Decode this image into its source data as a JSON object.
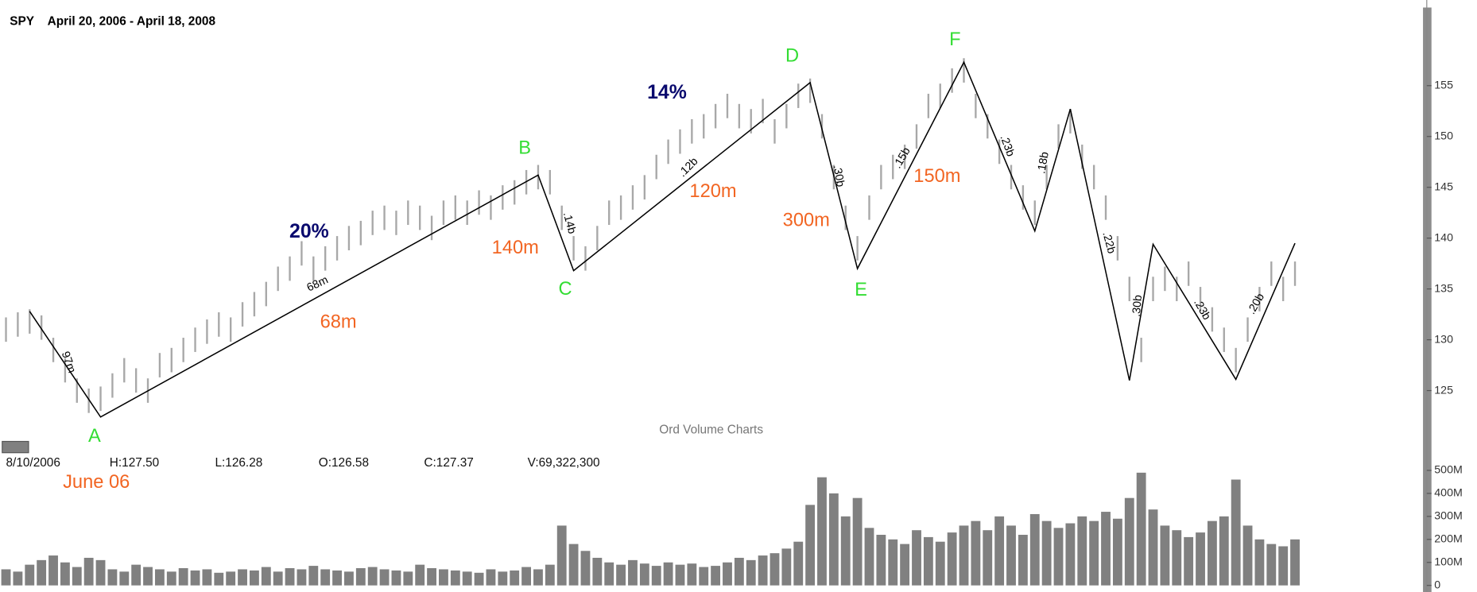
{
  "chart_data": {
    "type": "hilo",
    "title": "SPY",
    "subtitle": "April 20, 2006 - April 18, 2008",
    "price_color": "#a8a8a8",
    "volume_color": "#808080",
    "zigzag_color": "#000000",
    "high": [
      132.2,
      132.7,
      133.0,
      132.4,
      130.2,
      128.2,
      126.2,
      125.2,
      125.4,
      126.7,
      128.2,
      127.2,
      126.2,
      128.7,
      129.2,
      130.2,
      131.2,
      132.0,
      132.7,
      132.2,
      133.7,
      134.7,
      135.7,
      137.2,
      138.2,
      139.7,
      138.2,
      139.2,
      140.2,
      141.2,
      141.7,
      142.7,
      143.2,
      142.7,
      143.7,
      143.2,
      142.2,
      143.7,
      144.2,
      143.7,
      144.7,
      144.2,
      145.2,
      145.7,
      146.7,
      147.2,
      146.7,
      143.2,
      140.2,
      139.2,
      141.2,
      143.7,
      144.2,
      145.2,
      146.2,
      148.2,
      149.7,
      150.7,
      151.7,
      152.2,
      153.2,
      154.2,
      153.2,
      152.7,
      153.7,
      151.7,
      153.2,
      155.2,
      155.7,
      152.2,
      147.2,
      143.2,
      140.2,
      144.2,
      147.2,
      148.2,
      149.2,
      151.2,
      154.2,
      155.2,
      156.7,
      157.7,
      154.2,
      152.2,
      149.7,
      147.2,
      145.2,
      143.7,
      147.2,
      151.2,
      152.7,
      149.2,
      147.2,
      144.2,
      140.2,
      136.2,
      130.2,
      136.2,
      137.2,
      136.2,
      137.7,
      135.2,
      133.2,
      131.2,
      129.2,
      132.2,
      135.2,
      137.7,
      136.2,
      137.7
    ],
    "low": [
      129.8,
      130.3,
      130.6,
      130.0,
      127.8,
      125.8,
      123.8,
      122.8,
      123.0,
      124.3,
      125.8,
      124.8,
      123.8,
      126.3,
      126.8,
      127.8,
      128.8,
      129.6,
      130.3,
      129.8,
      131.3,
      132.3,
      133.3,
      134.8,
      135.8,
      137.3,
      135.8,
      136.8,
      137.8,
      138.8,
      139.3,
      140.3,
      140.8,
      140.3,
      141.3,
      140.8,
      139.8,
      141.3,
      141.8,
      141.3,
      142.3,
      141.8,
      142.8,
      143.3,
      144.3,
      144.8,
      144.3,
      140.8,
      137.8,
      136.8,
      138.8,
      141.3,
      141.8,
      142.8,
      143.8,
      145.8,
      147.3,
      148.3,
      149.3,
      149.8,
      150.8,
      151.8,
      150.8,
      150.3,
      151.3,
      149.3,
      150.8,
      152.8,
      153.3,
      149.8,
      144.8,
      140.8,
      137.8,
      141.8,
      144.8,
      145.8,
      146.8,
      148.8,
      151.8,
      152.8,
      154.3,
      155.3,
      151.8,
      149.8,
      147.3,
      144.8,
      142.8,
      141.3,
      144.8,
      148.8,
      150.3,
      146.8,
      144.8,
      141.8,
      137.8,
      133.8,
      127.8,
      133.8,
      134.8,
      133.8,
      135.3,
      132.8,
      130.8,
      128.8,
      126.8,
      129.8,
      132.8,
      135.3,
      133.8,
      135.3
    ],
    "volume": [
      70000000,
      60000000,
      90000000,
      110000000,
      130000000,
      100000000,
      80000000,
      120000000,
      110000000,
      70000000,
      60000000,
      90000000,
      80000000,
      70000000,
      60000000,
      75000000,
      65000000,
      70000000,
      55000000,
      60000000,
      70000000,
      65000000,
      80000000,
      60000000,
      75000000,
      70000000,
      85000000,
      70000000,
      65000000,
      60000000,
      75000000,
      80000000,
      70000000,
      65000000,
      60000000,
      90000000,
      75000000,
      70000000,
      65000000,
      60000000,
      55000000,
      70000000,
      60000000,
      65000000,
      80000000,
      70000000,
      90000000,
      260000000,
      180000000,
      150000000,
      120000000,
      100000000,
      90000000,
      110000000,
      95000000,
      85000000,
      100000000,
      90000000,
      95000000,
      80000000,
      85000000,
      100000000,
      120000000,
      110000000,
      130000000,
      140000000,
      160000000,
      190000000,
      350000000,
      470000000,
      400000000,
      300000000,
      380000000,
      250000000,
      220000000,
      200000000,
      180000000,
      240000000,
      210000000,
      190000000,
      230000000,
      260000000,
      280000000,
      240000000,
      300000000,
      260000000,
      220000000,
      310000000,
      280000000,
      250000000,
      270000000,
      300000000,
      280000000,
      320000000,
      290000000,
      380000000,
      490000000,
      330000000,
      260000000,
      240000000,
      210000000,
      230000000,
      280000000,
      300000000,
      460000000,
      260000000,
      200000000,
      180000000,
      170000000,
      200000000
    ],
    "ylim": [
      120,
      162.5
    ],
    "yticks": [
      125,
      130,
      135,
      140,
      145,
      150,
      155
    ],
    "y2lim": [
      0,
      540000000
    ],
    "y2ticks": [
      0,
      {
        "value": 100000000,
        "label": "100M"
      },
      {
        "value": 200000000,
        "label": "200M"
      },
      {
        "value": 300000000,
        "label": "300M"
      },
      {
        "value": 400000000,
        "label": "400M"
      },
      {
        "value": 500000000,
        "label": "500M"
      }
    ],
    "zigzag": {
      "x": [
        2,
        8,
        45,
        48,
        68,
        72,
        81,
        87,
        90,
        95,
        97,
        104,
        109
      ],
      "values": [
        132.8,
        122.4,
        146.2,
        136.8,
        155.3,
        137,
        157.3,
        140.7,
        152.7,
        126,
        139.4,
        126.1,
        139.5
      ]
    },
    "wave_labels": [
      "A",
      "B",
      "C",
      "D",
      "E",
      "F"
    ],
    "wave_color": "#33dd33",
    "annotations": [
      {
        "text": "97m",
        "color": "#000000"
      },
      {
        "text": "68m",
        "color": "#000000"
      },
      {
        "text": "20%",
        "color": "#0a0a6e"
      },
      {
        "text": "68m",
        "color": "#f26522"
      },
      {
        "text": "140m",
        "color": "#f26522"
      },
      {
        "text": ".14b",
        "color": "#000000"
      },
      {
        "text": "14%",
        "color": "#0a0a6e"
      },
      {
        "text": ".12b",
        "color": "#000000"
      },
      {
        "text": "120m",
        "color": "#f26522"
      },
      {
        "text": "300m",
        "color": "#f26522"
      },
      {
        "text": ".30b",
        "color": "#000000"
      },
      {
        "text": ".15b",
        "color": "#000000"
      },
      {
        "text": "150m",
        "color": "#f26522"
      },
      {
        "text": ".23b",
        "color": "#000000"
      },
      {
        "text": ".18b",
        "color": "#000000"
      },
      {
        "text": ".22b",
        "color": "#000000"
      },
      {
        "text": ".30b",
        "color": "#000000"
      },
      {
        "text": ".23b",
        "color": "#000000"
      },
      {
        "text": ".20b",
        "color": "#000000"
      }
    ],
    "panel_title": "Ord Volume Charts",
    "info": [
      "8/10/2006",
      "H:127.50",
      "L:126.28",
      "O:126.58",
      "C:127.37",
      "V:69,322,300"
    ],
    "note": "June 06",
    "note_color": "#f26522"
  }
}
